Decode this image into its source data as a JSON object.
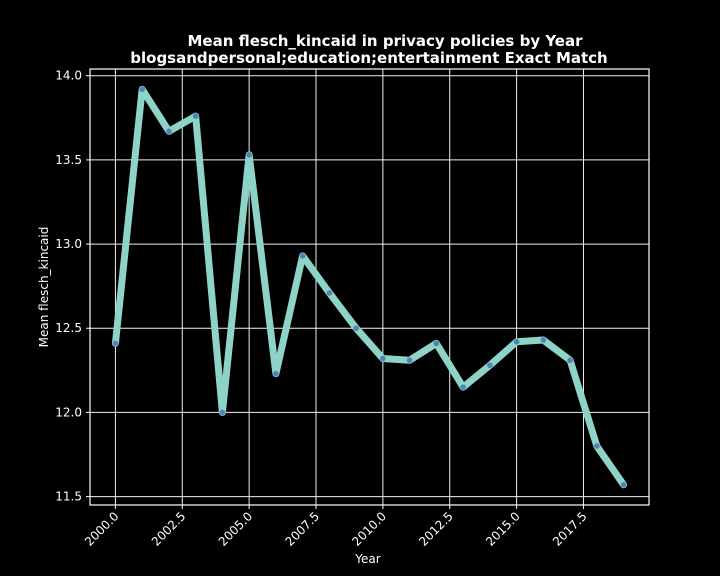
{
  "chart_data": {
    "type": "line",
    "title": "Mean flesch_kincaid in privacy policies by Year",
    "subtitle": "blogsandpersonal;education;entertainment Exact Match",
    "xlabel": "Year",
    "ylabel": "Mean flesch_kincaid",
    "xlim": [
      1999.05,
      2019.95
    ],
    "ylim": [
      11.45,
      14.04
    ],
    "x_ticks": [
      2000.0,
      2002.5,
      2005.0,
      2007.5,
      2010.0,
      2012.5,
      2015.0,
      2017.5
    ],
    "x_tick_labels": [
      "2000.0",
      "2002.5",
      "2005.0",
      "2007.5",
      "2010.0",
      "2012.5",
      "2015.0",
      "2017.5"
    ],
    "y_ticks": [
      11.5,
      12.0,
      12.5,
      13.0,
      13.5,
      14.0
    ],
    "y_tick_labels": [
      "11.5",
      "12.0",
      "12.5",
      "13.0",
      "13.5",
      "14.0"
    ],
    "grid": true,
    "series": [
      {
        "x": [
          2000,
          2001,
          2002,
          2003,
          2004,
          2005,
          2006,
          2007,
          2008,
          2009,
          2010,
          2011,
          2012,
          2013,
          2014,
          2015,
          2016,
          2017,
          2018,
          2019
        ],
        "y": [
          12.41,
          13.92,
          13.67,
          13.76,
          12.0,
          13.53,
          12.23,
          12.93,
          12.71,
          12.5,
          12.32,
          12.31,
          12.41,
          12.15,
          12.28,
          12.42,
          12.43,
          12.31,
          11.8,
          11.57
        ],
        "color": "#8dd3c7",
        "marker_color": "#4c72b0"
      }
    ]
  }
}
